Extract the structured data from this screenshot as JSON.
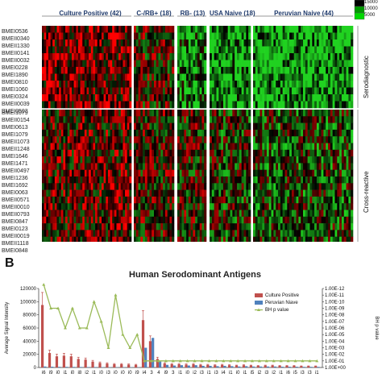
{
  "panel_b_letter": "B",
  "heatmap": {
    "groups": [
      {
        "label": "Culture Positive (42)",
        "columns": 42
      },
      {
        "label": "C-/RB+ (18)",
        "columns": 18
      },
      {
        "label": "RB- (13)",
        "columns": 13
      },
      {
        "label": "USA Naive (18)",
        "columns": 18
      },
      {
        "label": "Peruvian Naive (44)",
        "columns": 44
      }
    ],
    "serodiagnostic_label": "Serodiagnostic",
    "cross_reactive_label": "Cross-reactive",
    "serodiagnostic_rows": [
      "BMEI0536",
      "BMEII0340",
      "BMEII1330",
      "BMEII0141",
      "BMEII0032",
      "BMEI0228",
      "BMEI1890",
      "BMEI0810",
      "BMEI1060",
      "BMEI0324",
      "BMEII0039",
      "BMEI0503"
    ],
    "cross_reactive_rows": [
      "BMEI1079",
      "BMEII0154",
      "BMEI0613",
      "BMEI1079",
      "BMEII1073",
      "BMEII1248",
      "BMEI1646",
      "BMEI1471",
      "BMEII0497",
      "BMEI1236",
      "BMEI1692",
      "BMEI0063",
      "BMEII0571",
      "BMEII0010",
      "BMEII0793",
      "BMEI0847",
      "BMEI0123",
      "BMEII0019",
      "BMEII1118",
      "BMEI0848"
    ],
    "scale_labels": [
      "15000",
      "10000",
      "5000"
    ],
    "colors": {
      "low": "#1fd01f",
      "mid": "#000000",
      "high": "#ff0000"
    }
  },
  "chart_data": {
    "type": "bar",
    "title": "Human Serodominant Antigens",
    "ylabel": "Average Signal Intensity",
    "y2label": "BH p value",
    "ylim": [
      0,
      120000
    ],
    "y_ticks": [
      "0",
      "20000",
      "40000",
      "60000",
      "80000",
      "100000",
      "120000"
    ],
    "y2_ticks": [
      "1.00E+00",
      "1.00E-01",
      "1.00E-02",
      "1.00E-03",
      "1.00E-04",
      "1.00E-05",
      "1.00E-06",
      "1.00E-07",
      "1.00E-08",
      "1.00E-09",
      "1.00E-10",
      "1.00E-11",
      "1.00E-12"
    ],
    "y2_scale": "log",
    "x_tick_labels": [
      "i6",
      "i9",
      "i0",
      "i1",
      "i0",
      "i8",
      "i2",
      "i1",
      "i0",
      "i3",
      "i0",
      "i0",
      "i0",
      "i9",
      "i4",
      "3",
      "4",
      "i9",
      "3",
      "i1",
      "i0",
      "i2",
      "i3",
      "i1",
      "i3",
      "i4",
      "i1",
      "i0",
      "i1",
      "i5",
      "i2",
      "i3",
      "i2",
      "i1",
      "i6",
      "i5",
      "i3",
      "i3",
      "i1"
    ],
    "series": [
      {
        "name": "Culture Positive",
        "color": "#c0504d",
        "values": [
          95000,
          22000,
          17000,
          18000,
          17000,
          13000,
          12000,
          9000,
          7000,
          6000,
          5000,
          5000,
          4500,
          4000,
          72000,
          40000,
          13000,
          6000,
          5000,
          5000,
          4500,
          5000,
          4000,
          4000,
          3500,
          4000,
          3500,
          3000,
          3500,
          3000,
          2500,
          3000,
          3000,
          2500,
          2500,
          2500,
          2000,
          2000,
          2000
        ]
      },
      {
        "name": "Peruvian Niave",
        "color": "#4f81bd",
        "values": [
          1500,
          1200,
          1000,
          1000,
          900,
          800,
          700,
          700,
          600,
          600,
          500,
          500,
          500,
          400,
          30000,
          45000,
          9000,
          4000,
          3000,
          3500,
          3000,
          3500,
          2500,
          2500,
          2000,
          2500,
          2000,
          1500,
          2000,
          1500,
          1500,
          1500,
          1500,
          1200,
          1200,
          1200,
          1000,
          1000,
          1000
        ]
      },
      {
        "name": "BH p value",
        "color": "#9bbb59",
        "type": "line",
        "values": [
          1e-13,
          1e-09,
          1e-09,
          1e-06,
          1e-09,
          1e-06,
          1e-06,
          1e-10,
          1e-07,
          0.001,
          1e-11,
          1e-05,
          0.001,
          1e-05,
          0.1,
          0.1,
          0.1,
          0.1,
          0.1,
          0.1,
          0.1,
          0.1,
          0.1,
          0.1,
          0.1,
          0.1,
          0.1,
          0.1,
          0.1,
          0.1,
          0.1,
          0.1,
          0.1,
          0.1,
          0.1,
          0.1,
          0.1,
          0.1,
          0.1
        ]
      }
    ]
  }
}
